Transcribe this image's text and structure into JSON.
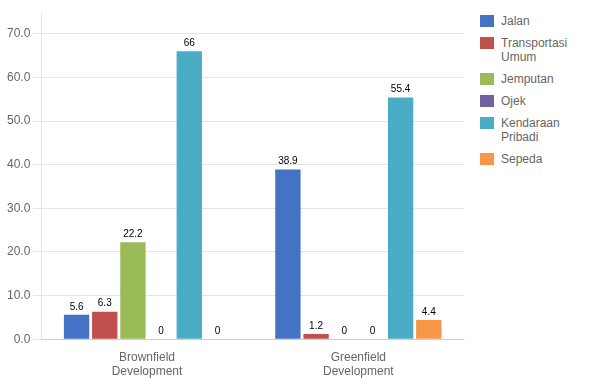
{
  "chart_data": {
    "type": "bar",
    "categories": [
      "Brownfield\nDevelopment",
      "Greenfield\nDevelopment"
    ],
    "series": [
      {
        "name": "Jalan",
        "color": "#4472C4",
        "values": [
          5.6,
          38.9
        ],
        "value_labels": [
          "5.6",
          "38.9"
        ]
      },
      {
        "name": "Transportasi\nUmum",
        "color": "#C0504D",
        "values": [
          6.3,
          1.2
        ],
        "value_labels": [
          "6.3",
          "1.2"
        ]
      },
      {
        "name": "Jemputan",
        "color": "#9BBB59",
        "values": [
          22.2,
          0.0
        ],
        "value_labels": [
          "22.2",
          "0"
        ]
      },
      {
        "name": "Ojek",
        "color": "#7460A0",
        "values": [
          0.0,
          0.0
        ],
        "value_labels": [
          "0",
          "0"
        ]
      },
      {
        "name": "Kendaraan\nPribadi",
        "color": "#4BACC6",
        "values": [
          66.0,
          55.4
        ],
        "value_labels": [
          "66",
          "55.4"
        ]
      },
      {
        "name": "Sepeda",
        "color": "#F79646",
        "values": [
          0.0,
          4.4
        ],
        "value_labels": [
          "0",
          "4.4"
        ]
      }
    ],
    "ylim": [
      0,
      75
    ],
    "yticks": [
      {
        "value": 0,
        "label": "0.0"
      },
      {
        "value": 10,
        "label": "10.0"
      },
      {
        "value": 20,
        "label": "20.0"
      },
      {
        "value": 30,
        "label": "30.0"
      },
      {
        "value": 40,
        "label": "40.0"
      },
      {
        "value": 50,
        "label": "50.0"
      },
      {
        "value": 60,
        "label": "60.0"
      },
      {
        "value": 70,
        "label": "70.0"
      }
    ],
    "grid": true,
    "legend": "right",
    "data_labels": true
  }
}
